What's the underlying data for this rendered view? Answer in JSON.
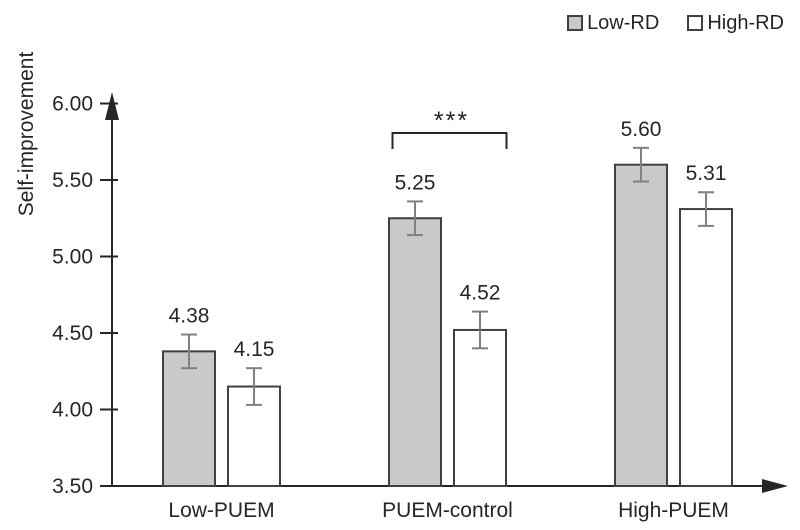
{
  "chart_data": {
    "type": "bar",
    "title": "",
    "ylabel": "Self-improvement",
    "xlabel": "",
    "categories": [
      "Low-PUEM",
      "PUEM-control",
      "High-PUEM"
    ],
    "series": [
      {
        "name": "Low-RD",
        "values": [
          4.38,
          5.25,
          5.6
        ],
        "value_labels": [
          "4.38",
          "5.25",
          "5.60"
        ],
        "errors": [
          0.11,
          0.11,
          0.11
        ],
        "fill": "#c9c9c9"
      },
      {
        "name": "High-RD",
        "values": [
          4.15,
          4.52,
          5.31
        ],
        "value_labels": [
          "4.15",
          "4.52",
          "5.31"
        ],
        "errors": [
          0.12,
          0.12,
          0.11
        ],
        "fill": "#ffffff"
      }
    ],
    "ylim": [
      3.5,
      6.0
    ],
    "ytick_labels": [
      "3.50",
      "4.00",
      "4.50",
      "5.00",
      "5.50",
      "6.00"
    ],
    "grid": false,
    "legend_position": "top-right",
    "annotations": [
      {
        "text": "***",
        "type": "significance-bracket",
        "category": "PUEM-control",
        "category_index": 1,
        "between": [
          "Low-RD",
          "High-RD"
        ]
      }
    ],
    "colors": {
      "bar_border": "#404040",
      "error_bar": "#808080",
      "axis": "#262626",
      "text": "#262626",
      "background": "#ffffff"
    }
  }
}
